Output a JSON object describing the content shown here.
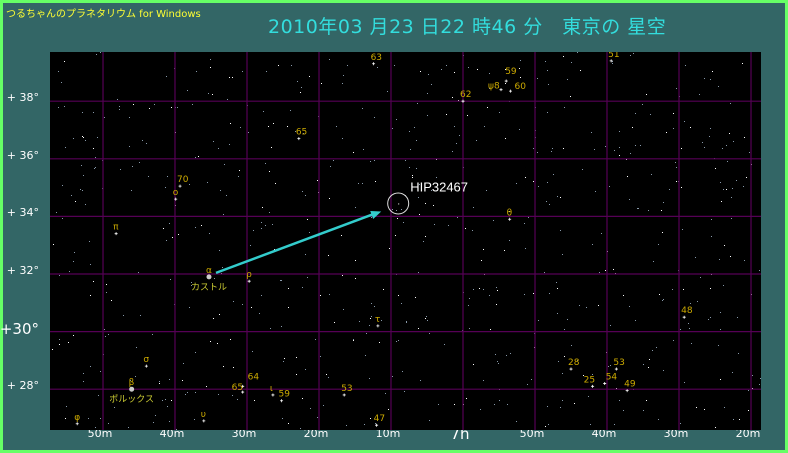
{
  "app_title": "つるちゃんのプラネタリウム for Windows",
  "view_title": "2010年03 月23 日22 時46 分　東京の 星空",
  "colors": {
    "background": "#336666",
    "border": "#66ff66",
    "sky": "#000000",
    "grid": "#550055",
    "label": "#ccaa00",
    "name_label": "#cccc33",
    "pointer": "#33cccc",
    "title": "#33dddd",
    "app_title": "#ffff33"
  },
  "chart_data": {
    "type": "scatter",
    "ra_range": [
      "7h55m",
      "6h19m"
    ],
    "dec_range": [
      26.6,
      39.7
    ],
    "grid": true,
    "dec_ticks": [
      "+ 38°",
      "+ 36°",
      "+ 34°",
      "+ 32°",
      "+30°",
      "+ 28°"
    ],
    "dec_values": [
      38,
      36,
      34,
      32,
      30,
      28
    ],
    "ra_ticks": [
      "50m",
      "40m",
      "30m",
      "20m",
      "10m",
      "7h",
      "50m",
      "40m",
      "30m",
      "20m"
    ],
    "ra_values": [
      7.8333,
      7.6667,
      7.5,
      7.3333,
      7.1667,
      7.0,
      6.8333,
      6.6667,
      6.5,
      6.3333
    ],
    "stars": [
      {
        "label": "63",
        "ra_h": 7.207,
        "dec": 39.3
      },
      {
        "label": "62",
        "ra_h": 7.0,
        "dec": 38.0
      },
      {
        "label": "59",
        "ra_h": 6.9,
        "dec": 38.7
      },
      {
        "label": "ψ8",
        "ra_h": 6.912,
        "dec": 38.4
      },
      {
        "label": "60",
        "ra_h": 6.89,
        "dec": 38.35
      },
      {
        "label": "51",
        "ra_h": 6.657,
        "dec": 39.4
      },
      {
        "label": "65",
        "ra_h": 7.38,
        "dec": 36.7
      },
      {
        "label": "70",
        "ra_h": 7.655,
        "dec": 35.05
      },
      {
        "label": "ο",
        "ra_h": 7.665,
        "dec": 34.6
      },
      {
        "label": "π",
        "ra_h": 7.803,
        "dec": 33.4
      },
      {
        "label": "α",
        "ra_h": 7.588,
        "dec": 31.9,
        "name": "カストル",
        "bright": true
      },
      {
        "label": "ρ",
        "ra_h": 7.495,
        "dec": 31.75
      },
      {
        "label": "θ",
        "ra_h": 6.892,
        "dec": 33.9
      },
      {
        "label": "τ",
        "ra_h": 7.197,
        "dec": 30.2
      },
      {
        "label": "48",
        "ra_h": 6.488,
        "dec": 30.5
      },
      {
        "label": "σ",
        "ra_h": 7.733,
        "dec": 28.8
      },
      {
        "label": "β",
        "ra_h": 7.767,
        "dec": 28.0,
        "name": "ポルックス",
        "bright": true
      },
      {
        "label": "64",
        "ra_h": 7.51,
        "dec": 28.1
      },
      {
        "label": "65",
        "ra_h": 7.51,
        "dec": 27.9
      },
      {
        "label": "ι",
        "ra_h": 7.44,
        "dec": 27.8
      },
      {
        "label": "59",
        "ra_h": 7.42,
        "dec": 27.6
      },
      {
        "label": "53",
        "ra_h": 7.275,
        "dec": 27.8
      },
      {
        "label": "47",
        "ra_h": 7.2,
        "dec": 26.75
      },
      {
        "label": "υ",
        "ra_h": 7.6,
        "dec": 26.9
      },
      {
        "label": "φ",
        "ra_h": 7.893,
        "dec": 26.8
      },
      {
        "label": "28",
        "ra_h": 6.75,
        "dec": 28.7
      },
      {
        "label": "53",
        "ra_h": 6.645,
        "dec": 28.7
      },
      {
        "label": "25",
        "ra_h": 6.7,
        "dec": 28.1
      },
      {
        "label": "54",
        "ra_h": 6.672,
        "dec": 28.2
      },
      {
        "label": "49",
        "ra_h": 6.62,
        "dec": 27.95
      }
    ],
    "target": {
      "label": "HIP32467",
      "ra_h": 7.15,
      "dec": 34.45
    },
    "pointer_from": "α"
  }
}
